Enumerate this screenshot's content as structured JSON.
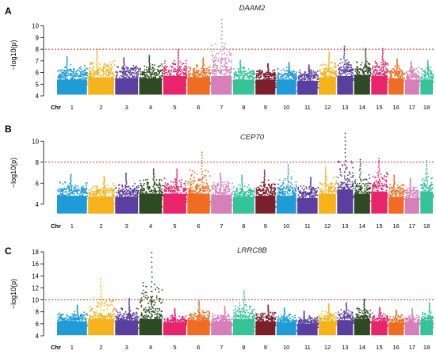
{
  "chart_data": [
    {
      "type": "scatter",
      "panel_label": "A",
      "title": "DAAM2",
      "ylabel": "−log10(p)",
      "ylim": [
        4,
        11
      ],
      "yticks": [
        4,
        5,
        6,
        7,
        8,
        9,
        10
      ],
      "threshold": 8,
      "chr_axis_label": "Chr",
      "chromosomes": [
        {
          "chr": "1",
          "label": "1",
          "color": "#1f9bd7",
          "base": 6.0,
          "peak": 7.4
        },
        {
          "chr": "2",
          "label": "2",
          "color": "#f6b21b",
          "base": 6.2,
          "peak": 8.0
        },
        {
          "chr": "3",
          "label": "3",
          "color": "#5a3ea0",
          "base": 6.1,
          "peak": 7.3
        },
        {
          "chr": "4",
          "label": "4",
          "color": "#2e4a22",
          "base": 6.1,
          "peak": 7.5
        },
        {
          "chr": "5",
          "label": "5",
          "color": "#e8246a",
          "base": 6.3,
          "peak": 8.0
        },
        {
          "chr": "6",
          "label": "6",
          "color": "#ef6d22",
          "base": 6.2,
          "peak": 7.3
        },
        {
          "chr": "7",
          "label": "7",
          "color": "#d77fb8",
          "base": 6.3,
          "peak": 10.6
        },
        {
          "chr": "8",
          "label": "8",
          "color": "#35c39a",
          "base": 6.0,
          "peak": 7.1
        },
        {
          "chr": "9",
          "label": "9",
          "color": "#7a1f2c",
          "base": 6.0,
          "peak": 6.8
        },
        {
          "chr": "10",
          "label": "10",
          "color": "#1f9bd7",
          "base": 6.0,
          "peak": 6.9
        },
        {
          "chr": "11",
          "label": "11",
          "color": "#5a3ea0",
          "base": 5.9,
          "peak": 6.7
        },
        {
          "chr": "12",
          "label": "12",
          "color": "#f6b21b",
          "base": 6.2,
          "peak": 7.8
        },
        {
          "chr": "13",
          "label": "13",
          "color": "#5a3ea0",
          "base": 6.3,
          "peak": 8.3
        },
        {
          "chr": "14",
          "label": "14",
          "color": "#2e4a22",
          "base": 6.4,
          "peak": 8.1
        },
        {
          "chr": "15",
          "label": "15",
          "color": "#e8246a",
          "base": 6.3,
          "peak": 8.1
        },
        {
          "chr": "16",
          "label": "16",
          "color": "#ef6d22",
          "base": 6.1,
          "peak": 7.2
        },
        {
          "chr": "17",
          "label": "17",
          "color": "#d77fb8",
          "base": 6.0,
          "peak": 7.0
        },
        {
          "chr": "18",
          "label": "18",
          "color": "#35c39a",
          "base": 6.0,
          "peak": 7.1
        }
      ]
    },
    {
      "type": "scatter",
      "panel_label": "B",
      "title": "CEP70",
      "ylabel": "−log10(p)",
      "ylim": [
        3,
        11
      ],
      "yticks": [
        4,
        6,
        8,
        10
      ],
      "threshold": 8,
      "chr_axis_label": "Chr",
      "chromosomes": [
        {
          "chr": "1",
          "label": "1",
          "color": "#1f9bd7",
          "base": 5.4,
          "peak": 6.9
        },
        {
          "chr": "2",
          "label": "2",
          "color": "#f6b21b",
          "base": 5.3,
          "peak": 6.7
        },
        {
          "chr": "3",
          "label": "3",
          "color": "#5a3ea0",
          "base": 5.3,
          "peak": 7.0
        },
        {
          "chr": "4",
          "label": "4",
          "color": "#2e4a22",
          "base": 5.6,
          "peak": 7.4
        },
        {
          "chr": "5",
          "label": "5",
          "color": "#e8246a",
          "base": 5.6,
          "peak": 7.4
        },
        {
          "chr": "6",
          "label": "6",
          "color": "#ef6d22",
          "base": 5.6,
          "peak": 9.0
        },
        {
          "chr": "7",
          "label": "7",
          "color": "#d77fb8",
          "base": 5.5,
          "peak": 7.0
        },
        {
          "chr": "8",
          "label": "8",
          "color": "#35c39a",
          "base": 5.3,
          "peak": 6.8
        },
        {
          "chr": "9",
          "label": "9",
          "color": "#7a1f2c",
          "base": 5.4,
          "peak": 7.3
        },
        {
          "chr": "10",
          "label": "10",
          "color": "#1f9bd7",
          "base": 5.4,
          "peak": 7.8
        },
        {
          "chr": "11",
          "label": "11",
          "color": "#5a3ea0",
          "base": 5.2,
          "peak": 6.6
        },
        {
          "chr": "12",
          "label": "12",
          "color": "#f6b21b",
          "base": 5.6,
          "peak": 7.6
        },
        {
          "chr": "13",
          "label": "13",
          "color": "#5a3ea0",
          "base": 6.0,
          "peak": 10.8
        },
        {
          "chr": "14",
          "label": "14",
          "color": "#2e4a22",
          "base": 5.6,
          "peak": 8.3
        },
        {
          "chr": "15",
          "label": "15",
          "color": "#e8246a",
          "base": 5.8,
          "peak": 8.4
        },
        {
          "chr": "16",
          "label": "16",
          "color": "#ef6d22",
          "base": 5.3,
          "peak": 6.8
        },
        {
          "chr": "17",
          "label": "17",
          "color": "#d77fb8",
          "base": 5.2,
          "peak": 6.5
        },
        {
          "chr": "18",
          "label": "18",
          "color": "#35c39a",
          "base": 5.8,
          "peak": 8.2
        }
      ]
    },
    {
      "type": "scatter",
      "panel_label": "C",
      "title": "LRRC8B",
      "ylabel": "−log10(p)",
      "ylim": [
        4,
        18
      ],
      "yticks": [
        4,
        6,
        8,
        10,
        12,
        14,
        16,
        18
      ],
      "threshold": 10,
      "chr_axis_label": "Chr",
      "chromosomes": [
        {
          "chr": "1",
          "label": "1",
          "color": "#1f9bd7",
          "base": 7.0,
          "peak": 9.2
        },
        {
          "chr": "2",
          "label": "2",
          "color": "#f6b21b",
          "base": 7.4,
          "peak": 13.5
        },
        {
          "chr": "3",
          "label": "3",
          "color": "#5a3ea0",
          "base": 7.2,
          "peak": 10.3
        },
        {
          "chr": "4",
          "label": "4",
          "color": "#2e4a22",
          "base": 7.4,
          "peak": 18.0
        },
        {
          "chr": "5",
          "label": "5",
          "color": "#e8246a",
          "base": 6.8,
          "peak": 8.6
        },
        {
          "chr": "6",
          "label": "6",
          "color": "#ef6d22",
          "base": 7.2,
          "peak": 9.9
        },
        {
          "chr": "7",
          "label": "7",
          "color": "#d77fb8",
          "base": 7.0,
          "peak": 9.0
        },
        {
          "chr": "8",
          "label": "8",
          "color": "#35c39a",
          "base": 7.4,
          "peak": 11.6
        },
        {
          "chr": "9",
          "label": "9",
          "color": "#7a1f2c",
          "base": 7.0,
          "peak": 9.2
        },
        {
          "chr": "10",
          "label": "10",
          "color": "#1f9bd7",
          "base": 6.8,
          "peak": 8.7
        },
        {
          "chr": "11",
          "label": "11",
          "color": "#5a3ea0",
          "base": 6.6,
          "peak": 8.2
        },
        {
          "chr": "12",
          "label": "12",
          "color": "#f6b21b",
          "base": 7.0,
          "peak": 9.4
        },
        {
          "chr": "13",
          "label": "13",
          "color": "#5a3ea0",
          "base": 7.2,
          "peak": 9.6
        },
        {
          "chr": "14",
          "label": "14",
          "color": "#2e4a22",
          "base": 7.4,
          "peak": 10.2
        },
        {
          "chr": "15",
          "label": "15",
          "color": "#e8246a",
          "base": 7.0,
          "peak": 8.8
        },
        {
          "chr": "16",
          "label": "16",
          "color": "#ef6d22",
          "base": 6.8,
          "peak": 8.4
        },
        {
          "chr": "17",
          "label": "17",
          "color": "#d77fb8",
          "base": 6.8,
          "peak": 8.6
        },
        {
          "chr": "18",
          "label": "18",
          "color": "#35c39a",
          "base": 7.2,
          "peak": 9.6
        }
      ]
    }
  ]
}
